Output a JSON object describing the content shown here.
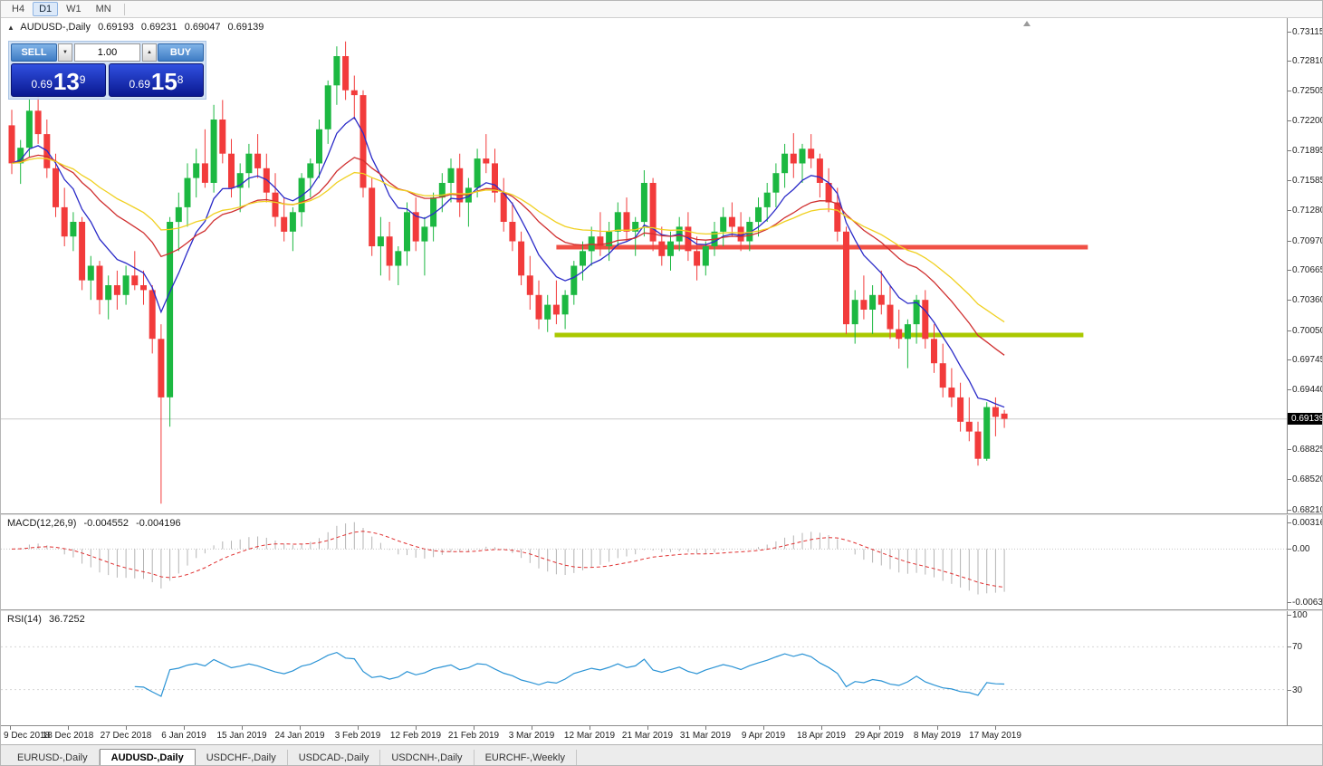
{
  "icons": {
    "panel_toggle": "▲",
    "volume_up": "▲",
    "volume_down": "▼"
  },
  "toolbar": {
    "timeframes": [
      {
        "label": "H4",
        "active": false
      },
      {
        "label": "D1",
        "active": true
      },
      {
        "label": "W1",
        "active": false
      },
      {
        "label": "MN",
        "active": false
      }
    ]
  },
  "chart_header": {
    "symbol": "AUDUSD-,Daily",
    "open": "0.69193",
    "high": "0.69231",
    "low": "0.69047",
    "close": "0.69139"
  },
  "trade_panel": {
    "sell_label": "SELL",
    "buy_label": "BUY",
    "volume": "1.00",
    "bid": {
      "prefix": "0.69",
      "big": "13",
      "sup": "9"
    },
    "ask": {
      "prefix": "0.69",
      "big": "15",
      "sup": "8"
    }
  },
  "price_axis": {
    "labels": [
      "0.73115",
      "0.72810",
      "0.72505",
      "0.72200",
      "0.71895",
      "0.71585",
      "0.71280",
      "0.70970",
      "0.70665",
      "0.70360",
      "0.70050",
      "0.69745",
      "0.69440",
      "0.68825",
      "0.68520",
      "0.68210"
    ],
    "current": "0.69139"
  },
  "macd_panel": {
    "label": "MACD(12,26,9)",
    "main_value": "-0.004552",
    "signal_value": "-0.004196",
    "axis_labels": [
      "0.003164",
      "0.00",
      "-0.006317"
    ]
  },
  "rsi_panel": {
    "label": "RSI(14)",
    "value": "36.7252",
    "axis_labels": [
      "100",
      "70",
      "30"
    ]
  },
  "date_axis": {
    "labels": [
      "9 Dec 2018",
      "18 Dec 2018",
      "27 Dec 2018",
      "6 Jan 2019",
      "15 Jan 2019",
      "24 Jan 2019",
      "3 Feb 2019",
      "12 Feb 2019",
      "21 Feb 2019",
      "3 Mar 2019",
      "12 Mar 2019",
      "21 Mar 2019",
      "31 Mar 2019",
      "9 Apr 2019",
      "18 Apr 2019",
      "29 Apr 2019",
      "8 May 2019",
      "17 May 2019"
    ]
  },
  "tabs": [
    {
      "label": "EURUSD-,Daily",
      "active": false
    },
    {
      "label": "AUDUSD-,Daily",
      "active": true
    },
    {
      "label": "USDCHF-,Daily",
      "active": false
    },
    {
      "label": "USDCAD-,Daily",
      "active": false
    },
    {
      "label": "USDCNH-,Daily",
      "active": false
    },
    {
      "label": "EURCHF-,Weekly",
      "active": false
    }
  ],
  "chart_data": {
    "type": "candlestick",
    "symbol": "AUDUSD",
    "timeframe": "Daily",
    "title": "AUDUSD-,Daily",
    "price_top": 0.7325,
    "price_bottom": 0.6817,
    "current_price": 0.69139,
    "colors": {
      "up": "#1cb841",
      "down": "#f23b3b",
      "ma_fast": "#2a2ac8",
      "ma_mid": "#d03030",
      "ma_slow": "#f0d020",
      "resistance": "#f05045",
      "support": "#aac800",
      "macd_hist": "#b4b4b4",
      "macd_signal": "#e03030",
      "rsi": "#2a93d5",
      "current_line": "#c9c9c9"
    },
    "moving_averages": [
      {
        "period": 8,
        "color_key": "ma_fast"
      },
      {
        "period": 21,
        "color_key": "ma_mid"
      },
      {
        "period": 34,
        "color_key": "ma_slow"
      }
    ],
    "hlines": [
      {
        "price": 0.709,
        "color_key": "resistance",
        "from_index": 62,
        "to_index": 122.5,
        "width": 5
      },
      {
        "price": 0.7,
        "color_key": "support",
        "from_index": 61.8,
        "to_index": 122,
        "width": 5
      }
    ],
    "macd": {
      "fast": 12,
      "slow": 26,
      "signal": 9,
      "scale_top": 0.003164,
      "scale_bottom": -0.006317
    },
    "rsi": {
      "period": 14,
      "levels": [
        70,
        30
      ]
    },
    "candles": [
      [
        0.7215,
        0.7231,
        0.7165,
        0.7176
      ],
      [
        0.7176,
        0.72,
        0.7155,
        0.7192
      ],
      [
        0.7192,
        0.7242,
        0.7182,
        0.723
      ],
      [
        0.723,
        0.7246,
        0.7196,
        0.7206
      ],
      [
        0.7206,
        0.7221,
        0.7161,
        0.7171
      ],
      [
        0.7171,
        0.7186,
        0.7121,
        0.7131
      ],
      [
        0.7131,
        0.7151,
        0.7091,
        0.7101
      ],
      [
        0.7101,
        0.7126,
        0.7086,
        0.7116
      ],
      [
        0.7116,
        0.7121,
        0.7046,
        0.7056
      ],
      [
        0.7056,
        0.7081,
        0.7036,
        0.7071
      ],
      [
        0.7071,
        0.7076,
        0.7021,
        0.7036
      ],
      [
        0.7036,
        0.7061,
        0.7016,
        0.7051
      ],
      [
        0.7051,
        0.7066,
        0.7026,
        0.7041
      ],
      [
        0.7041,
        0.7071,
        0.7031,
        0.7061
      ],
      [
        0.7061,
        0.7086,
        0.7046,
        0.7051
      ],
      [
        0.7051,
        0.7066,
        0.7031,
        0.7046
      ],
      [
        0.7046,
        0.7051,
        0.6981,
        0.6996
      ],
      [
        0.6996,
        0.7011,
        0.6827,
        0.6936
      ],
      [
        0.6936,
        0.7121,
        0.6906,
        0.7116
      ],
      [
        0.7116,
        0.7146,
        0.7086,
        0.7131
      ],
      [
        0.7131,
        0.7176,
        0.7111,
        0.7161
      ],
      [
        0.7161,
        0.7191,
        0.7141,
        0.7176
      ],
      [
        0.7176,
        0.7211,
        0.7151,
        0.7156
      ],
      [
        0.7156,
        0.7236,
        0.7146,
        0.7221
      ],
      [
        0.7221,
        0.7241,
        0.7176,
        0.7186
      ],
      [
        0.7186,
        0.7201,
        0.7141,
        0.7151
      ],
      [
        0.7151,
        0.7176,
        0.7126,
        0.7166
      ],
      [
        0.7166,
        0.7196,
        0.7151,
        0.7186
      ],
      [
        0.7186,
        0.7206,
        0.7161,
        0.7171
      ],
      [
        0.7171,
        0.7186,
        0.7136,
        0.7146
      ],
      [
        0.7146,
        0.7166,
        0.7111,
        0.7121
      ],
      [
        0.7121,
        0.7141,
        0.7096,
        0.7106
      ],
      [
        0.7106,
        0.7131,
        0.7086,
        0.7126
      ],
      [
        0.7126,
        0.7166,
        0.7111,
        0.7161
      ],
      [
        0.7161,
        0.7181,
        0.7141,
        0.7176
      ],
      [
        0.7176,
        0.7221,
        0.7161,
        0.7211
      ],
      [
        0.7211,
        0.7261,
        0.7196,
        0.7256
      ],
      [
        0.7256,
        0.7296,
        0.7236,
        0.7286
      ],
      [
        0.7286,
        0.7301,
        0.7241,
        0.7251
      ],
      [
        0.7251,
        0.7266,
        0.7221,
        0.7246
      ],
      [
        0.7246,
        0.7251,
        0.7141,
        0.7151
      ],
      [
        0.7151,
        0.7161,
        0.7081,
        0.7091
      ],
      [
        0.7091,
        0.7121,
        0.7061,
        0.7101
      ],
      [
        0.7101,
        0.7116,
        0.7056,
        0.7071
      ],
      [
        0.7071,
        0.7091,
        0.7051,
        0.7086
      ],
      [
        0.7086,
        0.7136,
        0.7071,
        0.7126
      ],
      [
        0.7126,
        0.7141,
        0.7086,
        0.7096
      ],
      [
        0.7096,
        0.7121,
        0.7061,
        0.7111
      ],
      [
        0.7111,
        0.7146,
        0.7096,
        0.7141
      ],
      [
        0.7141,
        0.7166,
        0.7126,
        0.7156
      ],
      [
        0.7156,
        0.7181,
        0.7136,
        0.7171
      ],
      [
        0.7171,
        0.7186,
        0.7121,
        0.7136
      ],
      [
        0.7136,
        0.7161,
        0.7111,
        0.7151
      ],
      [
        0.7151,
        0.7191,
        0.7141,
        0.7181
      ],
      [
        0.7181,
        0.7206,
        0.7166,
        0.7176
      ],
      [
        0.7176,
        0.7191,
        0.7136,
        0.7146
      ],
      [
        0.7146,
        0.7161,
        0.7106,
        0.7116
      ],
      [
        0.7116,
        0.7136,
        0.7086,
        0.7096
      ],
      [
        0.7096,
        0.7106,
        0.7051,
        0.7061
      ],
      [
        0.7061,
        0.7081,
        0.7026,
        0.7041
      ],
      [
        0.7041,
        0.7056,
        0.7006,
        0.7016
      ],
      [
        0.7016,
        0.7041,
        0.7003,
        0.7031
      ],
      [
        0.7031,
        0.7056,
        0.7011,
        0.7021
      ],
      [
        0.7021,
        0.7046,
        0.7006,
        0.7041
      ],
      [
        0.7041,
        0.7076,
        0.7031,
        0.7071
      ],
      [
        0.7071,
        0.7096,
        0.7056,
        0.7086
      ],
      [
        0.7086,
        0.7111,
        0.7071,
        0.7101
      ],
      [
        0.7101,
        0.7126,
        0.7081,
        0.7091
      ],
      [
        0.7091,
        0.7116,
        0.7076,
        0.7106
      ],
      [
        0.7106,
        0.7136,
        0.7091,
        0.7126
      ],
      [
        0.7126,
        0.7141,
        0.7096,
        0.7106
      ],
      [
        0.7106,
        0.7121,
        0.7081,
        0.7116
      ],
      [
        0.7116,
        0.7169,
        0.7101,
        0.7156
      ],
      [
        0.7156,
        0.7161,
        0.7086,
        0.7096
      ],
      [
        0.7096,
        0.7111,
        0.7071,
        0.7081
      ],
      [
        0.7081,
        0.7106,
        0.7066,
        0.7096
      ],
      [
        0.7096,
        0.7121,
        0.7086,
        0.7111
      ],
      [
        0.7111,
        0.7126,
        0.7076,
        0.7086
      ],
      [
        0.7086,
        0.7101,
        0.7056,
        0.7071
      ],
      [
        0.7071,
        0.7096,
        0.7061,
        0.7091
      ],
      [
        0.7091,
        0.7116,
        0.7081,
        0.7106
      ],
      [
        0.7106,
        0.7131,
        0.7091,
        0.7121
      ],
      [
        0.7121,
        0.7136,
        0.7101,
        0.7111
      ],
      [
        0.7111,
        0.7126,
        0.7086,
        0.7096
      ],
      [
        0.7096,
        0.7121,
        0.7086,
        0.7116
      ],
      [
        0.7116,
        0.7141,
        0.7101,
        0.7131
      ],
      [
        0.7131,
        0.7156,
        0.7116,
        0.7146
      ],
      [
        0.7146,
        0.7176,
        0.7131,
        0.7166
      ],
      [
        0.7166,
        0.7196,
        0.7151,
        0.7186
      ],
      [
        0.7186,
        0.7207,
        0.7161,
        0.7176
      ],
      [
        0.7176,
        0.7196,
        0.7156,
        0.7191
      ],
      [
        0.7191,
        0.7206,
        0.7171,
        0.7181
      ],
      [
        0.7181,
        0.7186,
        0.7141,
        0.7156
      ],
      [
        0.7156,
        0.7171,
        0.7126,
        0.7136
      ],
      [
        0.7136,
        0.7151,
        0.7096,
        0.7106
      ],
      [
        0.7106,
        0.7111,
        0.7001,
        0.7011
      ],
      [
        0.7011,
        0.7046,
        0.6991,
        0.7036
      ],
      [
        0.7036,
        0.7061,
        0.7016,
        0.7026
      ],
      [
        0.7026,
        0.7051,
        0.7001,
        0.7041
      ],
      [
        0.7041,
        0.7066,
        0.7021,
        0.7031
      ],
      [
        0.7031,
        0.7051,
        0.6996,
        0.7006
      ],
      [
        0.7006,
        0.7026,
        0.6986,
        0.6996
      ],
      [
        0.6996,
        0.7016,
        0.6966,
        0.7011
      ],
      [
        0.7011,
        0.7041,
        0.6991,
        0.7036
      ],
      [
        0.7036,
        0.7046,
        0.6986,
        0.6996
      ],
      [
        0.6996,
        0.7011,
        0.6961,
        0.6971
      ],
      [
        0.6971,
        0.6991,
        0.6936,
        0.6946
      ],
      [
        0.6946,
        0.6966,
        0.6926,
        0.6936
      ],
      [
        0.6936,
        0.6951,
        0.6901,
        0.6911
      ],
      [
        0.6911,
        0.6936,
        0.6891,
        0.6901
      ],
      [
        0.6901,
        0.6911,
        0.6866,
        0.6873
      ],
      [
        0.6873,
        0.6931,
        0.6871,
        0.6926
      ],
      [
        0.6926,
        0.6936,
        0.6896,
        0.6916
      ],
      [
        0.69193,
        0.69231,
        0.69047,
        0.69139
      ]
    ]
  }
}
